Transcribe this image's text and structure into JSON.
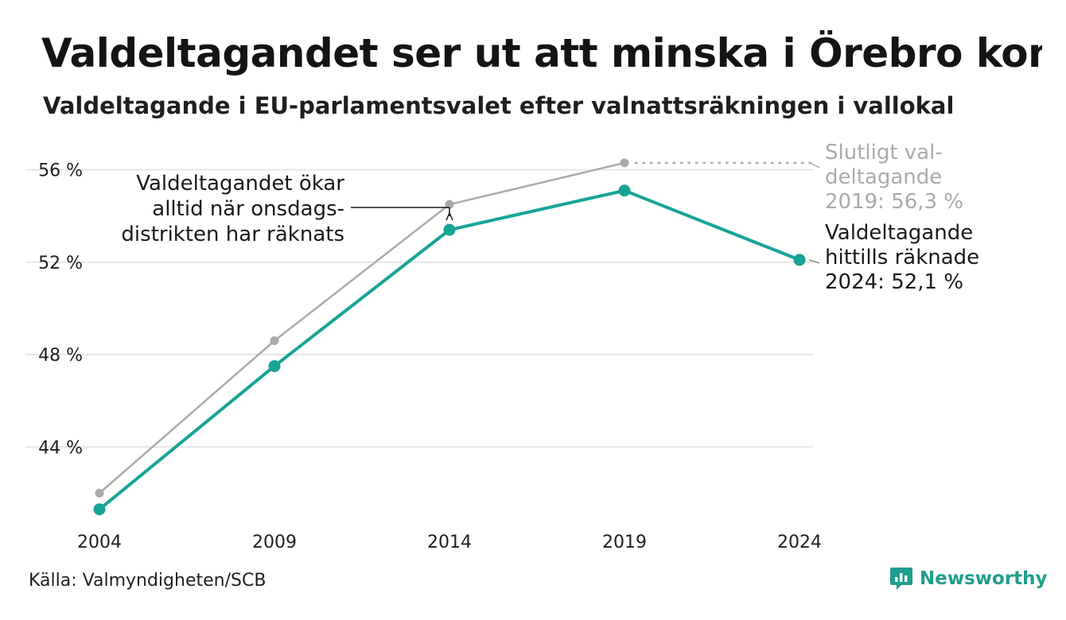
{
  "header": {
    "title": "Valdeltagandet ser ut att minska i Örebro kommun",
    "subtitle": "Valdeltagande i EU-parlamentsvalet efter valnattsräkningen i vallokal"
  },
  "chart_data": {
    "type": "line",
    "categories": [
      "2004",
      "2009",
      "2014",
      "2019",
      "2024"
    ],
    "x": [
      2004,
      2009,
      2014,
      2019,
      2024
    ],
    "series": [
      {
        "name": "",
        "color": "#aaaaaa",
        "values": [
          42.0,
          48.6,
          54.5,
          56.3,
          null
        ]
      },
      {
        "name": "",
        "color": "#17a398",
        "values": [
          41.3,
          47.5,
          53.4,
          55.1,
          52.1
        ]
      }
    ],
    "reference_value": 56.3,
    "ylim": [
      40.5,
      57.5
    ],
    "yticks": [
      44,
      48,
      52,
      56
    ],
    "ytick_labels": [
      "44 %",
      "48 %",
      "52 %",
      "56 %"
    ],
    "xtick_labels": [
      "2004",
      "2009",
      "2014",
      "2019",
      "2024"
    ],
    "grid": "horizontal",
    "annotations": {
      "wednesday_note": [
        "Valdeltagandet ökar",
        "alltid när onsdags-",
        "distrikten har räknats"
      ],
      "final_2019": [
        "Slutligt val-",
        "deltagande",
        "2019: 56,3 %"
      ],
      "counted_2024": [
        "Valdeltagande",
        "hittills räknade",
        "2024: 52,1 %"
      ]
    },
    "xlabel": "",
    "ylabel": ""
  },
  "footer": {
    "source": "Källa: Valmyndigheten/SCB",
    "brand": "Newsworthy",
    "brand_icon": "chart-bubble-icon"
  },
  "colors": {
    "accent": "#17a398",
    "reference": "#aaaaaa",
    "grid": "#e6e6e6",
    "brand": "#1f9e8e"
  }
}
